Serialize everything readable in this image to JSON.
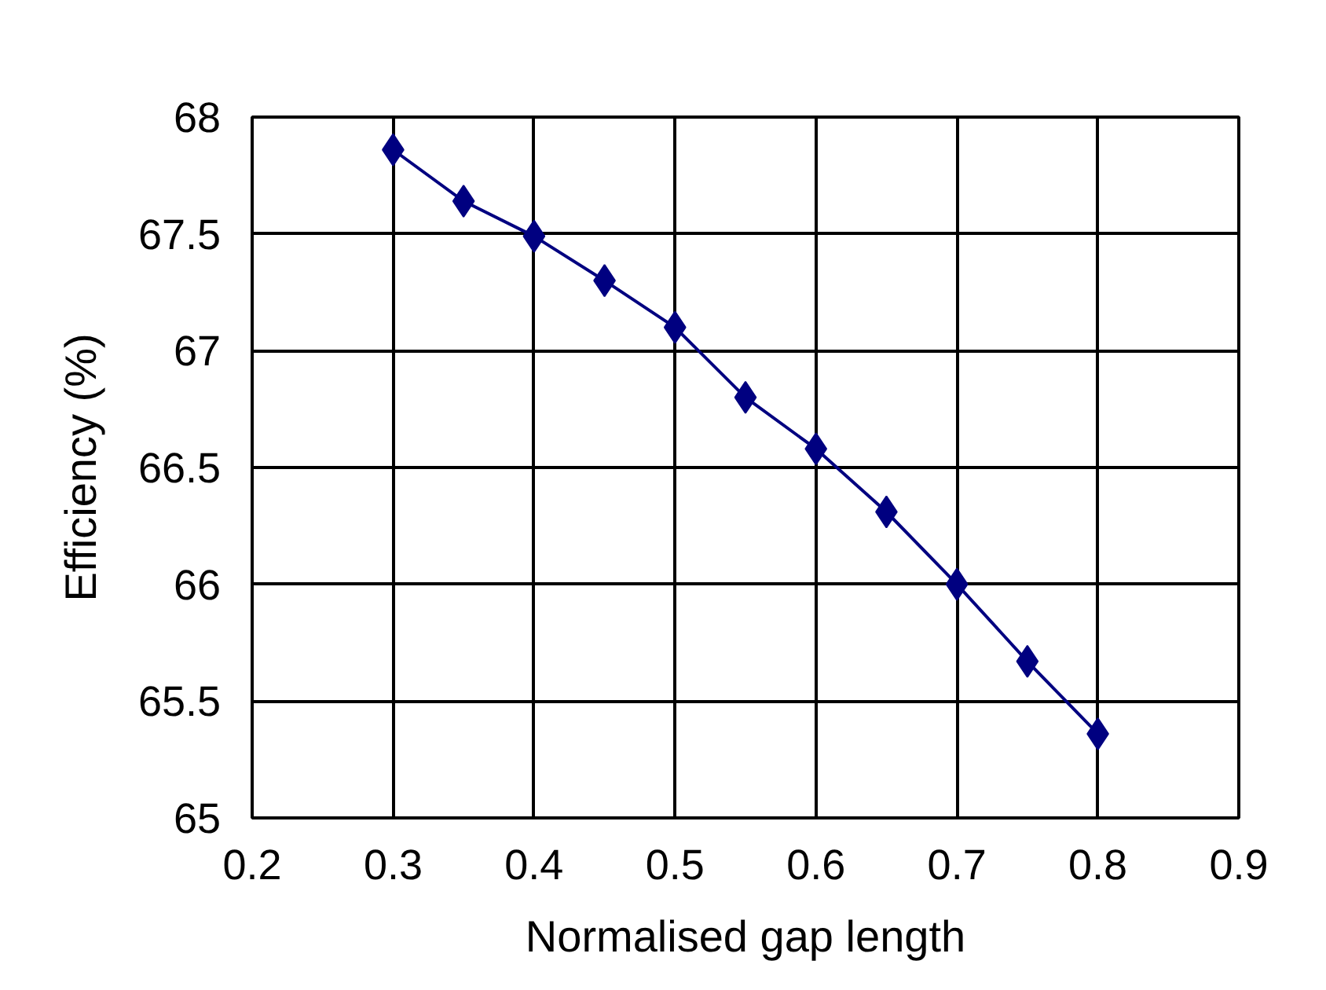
{
  "chart_data": {
    "type": "line",
    "xlabel": "Normalised gap length",
    "ylabel": "Efficiency (%)",
    "x": [
      0.3,
      0.35,
      0.4,
      0.45,
      0.5,
      0.55,
      0.6,
      0.65,
      0.7,
      0.75,
      0.8
    ],
    "series": [
      {
        "color": "#000080",
        "values": [
          67.86,
          67.64,
          67.49,
          67.3,
          67.1,
          66.8,
          66.58,
          66.31,
          66.0,
          65.67,
          65.36
        ]
      }
    ],
    "xlim": [
      0.2,
      0.9
    ],
    "xticks": [
      0.2,
      0.3,
      0.4,
      0.5,
      0.6,
      0.7,
      0.8,
      0.9
    ],
    "ylim": [
      65,
      68
    ],
    "yticks": [
      65,
      65.5,
      66,
      66.5,
      67,
      67.5,
      68
    ],
    "grid": true,
    "marker": "diamond",
    "line_style": "solid"
  }
}
